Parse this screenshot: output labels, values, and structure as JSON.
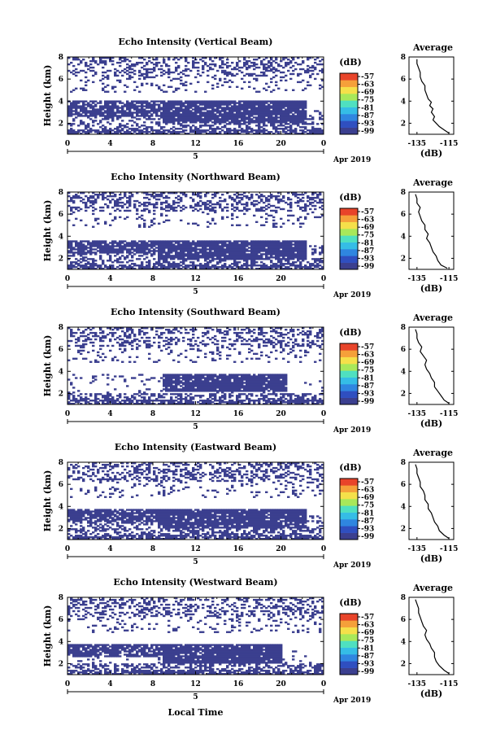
{
  "chart_data": {
    "type": "heatmap",
    "x_label": "Local Time",
    "date_label": "Apr 2019",
    "day_label": "5",
    "x_ticks": [
      "0",
      "4",
      "8",
      "12",
      "16",
      "20",
      "0"
    ],
    "x_range_hours": [
      0,
      24
    ],
    "y_label": "Height (km)",
    "y_ticks": [
      "2",
      "4",
      "6",
      "8"
    ],
    "y_range_km": [
      1,
      8
    ],
    "colorbar": {
      "unit": "(dB)",
      "ticks": [
        "-57",
        "-63",
        "-69",
        "-75",
        "-81",
        "-87",
        "-93",
        "-99"
      ],
      "colors": [
        "#3b3f8f",
        "#2f4fc0",
        "#2f86e0",
        "#35bde6",
        "#4fe0c0",
        "#a8e85a",
        "#f5e04a",
        "#f5a03a",
        "#e8442a"
      ]
    },
    "average_title": "Average",
    "average_unit": "(dB)",
    "average_x_ticks": [
      "-135",
      "-115"
    ],
    "average_y_ticks": [
      "2",
      "4",
      "6",
      "8"
    ],
    "panels": [
      {
        "title": "Echo Intensity (Vertical Beam)",
        "core": [
          9,
          22.5,
          2.0,
          4.0
        ],
        "profile": [
          [
            1.1,
            -115
          ],
          [
            1.4,
            -118
          ],
          [
            1.7,
            -121
          ],
          [
            2.0,
            -123
          ],
          [
            2.3,
            -125
          ],
          [
            2.6,
            -124
          ],
          [
            3.0,
            -126
          ],
          [
            3.3,
            -125
          ],
          [
            3.6,
            -127
          ],
          [
            3.9,
            -126
          ],
          [
            4.2,
            -128
          ],
          [
            4.6,
            -129
          ],
          [
            5.0,
            -130
          ],
          [
            5.4,
            -130
          ],
          [
            5.8,
            -132
          ],
          [
            6.2,
            -133
          ],
          [
            6.6,
            -133
          ],
          [
            7.0,
            -134
          ],
          [
            7.4,
            -135
          ],
          [
            7.8,
            -135
          ]
        ]
      },
      {
        "title": "Echo Intensity (Northward Beam)",
        "core": [
          8.5,
          22.5,
          1.9,
          3.6
        ],
        "profile": [
          [
            1.1,
            -116
          ],
          [
            1.4,
            -120
          ],
          [
            1.8,
            -122
          ],
          [
            2.2,
            -123
          ],
          [
            2.6,
            -125
          ],
          [
            3.0,
            -126
          ],
          [
            3.4,
            -127
          ],
          [
            3.8,
            -129
          ],
          [
            4.2,
            -128
          ],
          [
            4.6,
            -130
          ],
          [
            5.0,
            -130
          ],
          [
            5.4,
            -132
          ],
          [
            5.8,
            -133
          ],
          [
            6.2,
            -134
          ],
          [
            6.6,
            -133
          ],
          [
            7.0,
            -135
          ],
          [
            7.4,
            -135
          ],
          [
            7.8,
            -136
          ]
        ]
      },
      {
        "title": "Echo Intensity (Southward Beam)",
        "core": [
          9,
          20.5,
          2.2,
          3.7
        ],
        "profile": [
          [
            1.1,
            -115
          ],
          [
            1.4,
            -118
          ],
          [
            1.8,
            -120
          ],
          [
            2.2,
            -122
          ],
          [
            2.6,
            -124
          ],
          [
            3.0,
            -124
          ],
          [
            3.4,
            -126
          ],
          [
            3.8,
            -127
          ],
          [
            4.2,
            -129
          ],
          [
            4.6,
            -130
          ],
          [
            5.0,
            -129
          ],
          [
            5.4,
            -131
          ],
          [
            5.8,
            -133
          ],
          [
            6.2,
            -132
          ],
          [
            6.6,
            -134
          ],
          [
            7.0,
            -135
          ],
          [
            7.4,
            -135
          ],
          [
            7.8,
            -136
          ]
        ]
      },
      {
        "title": "Echo Intensity (Eastward Beam)",
        "core": [
          8.5,
          22.5,
          2.0,
          3.8
        ],
        "profile": [
          [
            1.1,
            -115
          ],
          [
            1.4,
            -118
          ],
          [
            1.8,
            -121
          ],
          [
            2.2,
            -122
          ],
          [
            2.6,
            -124
          ],
          [
            3.0,
            -125
          ],
          [
            3.4,
            -126
          ],
          [
            3.8,
            -128
          ],
          [
            4.2,
            -128
          ],
          [
            4.6,
            -130
          ],
          [
            5.0,
            -130
          ],
          [
            5.4,
            -131
          ],
          [
            5.8,
            -133
          ],
          [
            6.2,
            -133
          ],
          [
            6.6,
            -134
          ],
          [
            7.0,
            -135
          ],
          [
            7.4,
            -135
          ],
          [
            7.8,
            -136
          ]
        ]
      },
      {
        "title": "Echo Intensity (Westward Beam)",
        "core": [
          9,
          20,
          2.0,
          3.8
        ],
        "profile": [
          [
            1.1,
            -115
          ],
          [
            1.4,
            -118
          ],
          [
            1.8,
            -121
          ],
          [
            2.2,
            -123
          ],
          [
            2.6,
            -124
          ],
          [
            3.0,
            -124
          ],
          [
            3.4,
            -126
          ],
          [
            3.8,
            -127
          ],
          [
            4.2,
            -129
          ],
          [
            4.6,
            -130
          ],
          [
            5.0,
            -129
          ],
          [
            5.4,
            -131
          ],
          [
            5.8,
            -132
          ],
          [
            6.2,
            -133
          ],
          [
            6.6,
            -134
          ],
          [
            7.0,
            -134
          ],
          [
            7.4,
            -135
          ],
          [
            7.8,
            -136
          ]
        ]
      }
    ]
  }
}
